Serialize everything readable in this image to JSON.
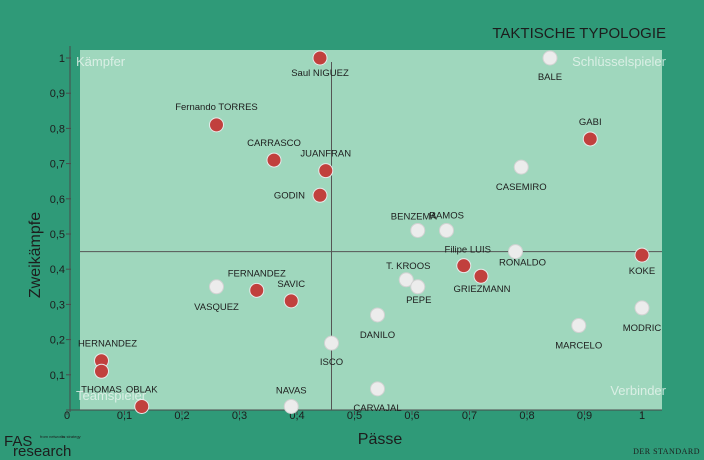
{
  "chart_data": {
    "type": "scatter",
    "title": "TAKTISCHE TYPOLOGIE",
    "xlabel": "Pässe",
    "ylabel": "Zweikämpfe",
    "xlim": [
      0,
      1
    ],
    "ylim": [
      0,
      1
    ],
    "x_ticks": [
      "0",
      "0,1",
      "0,2",
      "0,3",
      "0,4",
      "0,5",
      "0,6",
      "0,7",
      "0,8",
      "0,9",
      "1"
    ],
    "y_ticks": [
      "0,1",
      "0,2",
      "0,3",
      "0,4",
      "0,5",
      "0,6",
      "0,7",
      "0,8",
      "0,9",
      "1"
    ],
    "quadrants": {
      "top_left": "Kämpfer",
      "top_right": "Schlüsselspieler",
      "bottom_left": "Teamspieler",
      "bottom_right": "Verbinder"
    },
    "divider": {
      "x": 0.46,
      "y": 0.45
    },
    "colors": {
      "red": "#c1403d",
      "white": "#ececec"
    },
    "points": [
      {
        "name": "Saul NIGUEZ",
        "x": 0.44,
        "y": 1.0,
        "color": "red",
        "lx": 0,
        "ly": 18,
        "anchor": "middle"
      },
      {
        "name": "BALE",
        "x": 0.84,
        "y": 1.0,
        "color": "white",
        "lx": 0,
        "ly": 22,
        "anchor": "middle"
      },
      {
        "name": "Fernando TORRES",
        "x": 0.26,
        "y": 0.81,
        "color": "red",
        "lx": 0,
        "ly": -15,
        "anchor": "middle"
      },
      {
        "name": "GABI",
        "x": 0.91,
        "y": 0.77,
        "color": "red",
        "lx": 0,
        "ly": -14,
        "anchor": "middle"
      },
      {
        "name": "CARRASCO",
        "x": 0.36,
        "y": 0.71,
        "color": "red",
        "lx": 0,
        "ly": -14,
        "anchor": "middle"
      },
      {
        "name": "JUANFRAN",
        "x": 0.45,
        "y": 0.68,
        "color": "red",
        "lx": 0,
        "ly": -14,
        "anchor": "middle"
      },
      {
        "name": "CASEMIRO",
        "x": 0.79,
        "y": 0.69,
        "color": "white",
        "lx": 0,
        "ly": 23,
        "anchor": "middle"
      },
      {
        "name": "GODIN",
        "x": 0.44,
        "y": 0.61,
        "color": "red",
        "lx": -15,
        "ly": 3,
        "anchor": "end"
      },
      {
        "name": "BENZEMA",
        "x": 0.61,
        "y": 0.51,
        "color": "white",
        "lx": -4,
        "ly": -11,
        "anchor": "middle"
      },
      {
        "name": "RAMOS",
        "x": 0.66,
        "y": 0.51,
        "color": "white",
        "lx": 0,
        "ly": -12,
        "anchor": "middle"
      },
      {
        "name": "Filipe LUIS",
        "x": 0.69,
        "y": 0.41,
        "color": "red",
        "lx": 4,
        "ly": -13,
        "anchor": "middle"
      },
      {
        "name": "RONALDO",
        "x": 0.78,
        "y": 0.45,
        "color": "white",
        "lx": 7,
        "ly": 14,
        "anchor": "middle"
      },
      {
        "name": "KOKE",
        "x": 1.0,
        "y": 0.44,
        "color": "red",
        "lx": 0,
        "ly": 19,
        "anchor": "middle"
      },
      {
        "name": "T. KROOS",
        "x": 0.59,
        "y": 0.37,
        "color": "white",
        "lx": 2,
        "ly": -11,
        "anchor": "middle"
      },
      {
        "name": "PEPE",
        "x": 0.61,
        "y": 0.35,
        "color": "white",
        "lx": 1,
        "ly": 16,
        "anchor": "middle"
      },
      {
        "name": "GRIEZMANN",
        "x": 0.72,
        "y": 0.38,
        "color": "red",
        "lx": 1,
        "ly": 16,
        "anchor": "middle"
      },
      {
        "name": "FERNANDEZ",
        "x": 0.33,
        "y": 0.34,
        "color": "red",
        "lx": 0,
        "ly": -14,
        "anchor": "middle"
      },
      {
        "name": "SAVIC",
        "x": 0.39,
        "y": 0.31,
        "color": "red",
        "lx": 0,
        "ly": -14,
        "anchor": "middle"
      },
      {
        "name": "VASQUEZ",
        "x": 0.26,
        "y": 0.35,
        "color": "white",
        "lx": 0,
        "ly": 23,
        "anchor": "middle"
      },
      {
        "name": "DANILO",
        "x": 0.54,
        "y": 0.27,
        "color": "white",
        "lx": 0,
        "ly": 23,
        "anchor": "middle"
      },
      {
        "name": "MARCELO",
        "x": 0.89,
        "y": 0.24,
        "color": "white",
        "lx": 0,
        "ly": 23,
        "anchor": "middle"
      },
      {
        "name": "MODRIC",
        "x": 1.0,
        "y": 0.29,
        "color": "white",
        "lx": 0,
        "ly": 23,
        "anchor": "middle"
      },
      {
        "name": "ISCO",
        "x": 0.46,
        "y": 0.19,
        "color": "white",
        "lx": 0,
        "ly": 22,
        "anchor": "middle"
      },
      {
        "name": "HERNANDEZ",
        "x": 0.06,
        "y": 0.14,
        "color": "red",
        "lx": 6,
        "ly": -14,
        "anchor": "middle"
      },
      {
        "name": "THOMAS",
        "x": 0.06,
        "y": 0.11,
        "color": "red",
        "lx": 0,
        "ly": 21,
        "anchor": "middle"
      },
      {
        "name": "CARVAJAL",
        "x": 0.54,
        "y": 0.06,
        "color": "white",
        "lx": 0,
        "ly": 22,
        "anchor": "middle"
      },
      {
        "name": "OBLAK",
        "x": 0.13,
        "y": 0.01,
        "color": "red",
        "lx": 0,
        "ly": -14,
        "anchor": "middle"
      },
      {
        "name": "NAVAS",
        "x": 0.39,
        "y": 0.01,
        "color": "white",
        "lx": 0,
        "ly": -13,
        "anchor": "middle"
      }
    ]
  },
  "branding": {
    "left_big_1": "FAS",
    "left_big_2": "research",
    "left_small_1": "from networks",
    "left_small_2": "to strategy",
    "right": "DER STANDARD"
  }
}
